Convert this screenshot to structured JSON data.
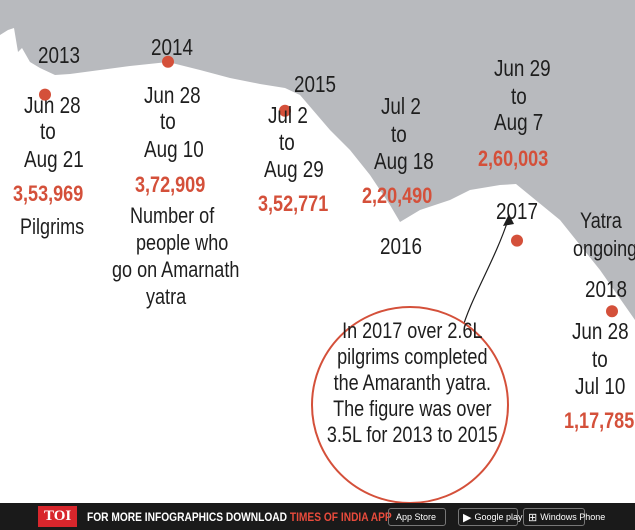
{
  "chart_data": {
    "type": "line",
    "title": "",
    "series": [
      {
        "points": [
          {
            "year": "2013",
            "period": [
              "Jun 28",
              "to",
              "Aug 21"
            ],
            "value": 353969,
            "value_label": "3,53,969",
            "note": "Pilgrims"
          },
          {
            "year": "2014",
            "period": [
              "Jun 28",
              "to",
              "Aug 10"
            ],
            "value": 372909,
            "value_label": "3,72,909",
            "note": "Number of people who go on Amarnath yatra"
          },
          {
            "year": "2015",
            "period": [
              "Jul 2",
              "to",
              "Aug 29"
            ],
            "value": 352771,
            "value_label": "3,52,771"
          },
          {
            "year": "2016",
            "period": [
              "Jul 2",
              "to",
              "Aug 18"
            ],
            "value": 220490,
            "value_label": "2,20,490"
          },
          {
            "year": "2017",
            "period": [
              "Jun 29",
              "to",
              "Aug 7"
            ],
            "value": 260003,
            "value_label": "2,60,003"
          },
          {
            "year": "2018",
            "period": [
              "Jun 28",
              "to",
              "Jul 10"
            ],
            "value": 117785,
            "value_label": "1,17,785",
            "status": "Yatra ongoing"
          }
        ]
      }
    ],
    "annotation": "In 2017 over 2.6L pilgrims completed the Amaranth yatra. The figure was over 3.5L for 2013 to 2015"
  },
  "labels": {
    "note_2013": "Pilgrims",
    "note_2014": [
      "Number of",
      "people who",
      "go on Amarnath",
      "yatra"
    ],
    "status_2018": [
      "Yatra",
      "ongoing"
    ],
    "callout_lines": [
      "In 2017 over 2.6L",
      "pilgrims completed",
      "the Amaranth yatra.",
      "The figure was over",
      "3.5L for 2013 to 2015"
    ]
  },
  "footer": {
    "brand": "TOI",
    "text": "FOR MORE  INFOGRAPHICS DOWNLOAD",
    "app_name": "TIMES OF INDIA APP",
    "stores": [
      {
        "icon": "apple-icon",
        "label": "App Store"
      },
      {
        "icon": "google-play-icon",
        "label": "Google play"
      },
      {
        "icon": "windows-icon",
        "label": "Windows Phone"
      }
    ]
  },
  "colors": {
    "accent": "#d4503a",
    "mountain": "#b8babe",
    "text": "#1e1e1e",
    "footer_bg": "#1a1a1a"
  }
}
